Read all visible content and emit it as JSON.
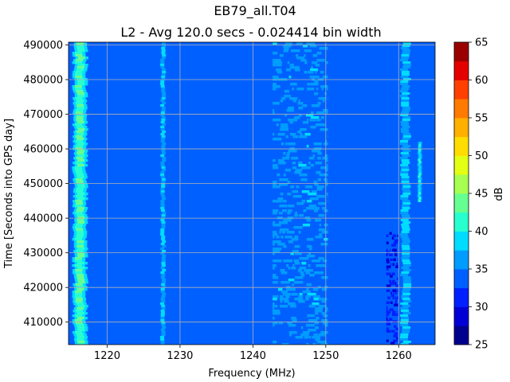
{
  "chart_data": {
    "type": "heatmap",
    "title": "EB79_all.T04",
    "subtitle": "L2 - Avg 120.0 secs - 0.024414 bin width",
    "xlabel": "Frequency (MHz)",
    "ylabel": "Time [Seconds into GPS day]",
    "xlim": [
      1214.7,
      1265.0
    ],
    "ylim": [
      403500,
      490800
    ],
    "xticks": [
      1220,
      1230,
      1240,
      1250,
      1260
    ],
    "xtick_labels": [
      "1220",
      "1230",
      "1240",
      "1250",
      "1260"
    ],
    "yticks": [
      410000,
      420000,
      430000,
      440000,
      450000,
      460000,
      470000,
      480000,
      490000
    ],
    "ytick_labels": [
      "410000",
      "420000",
      "430000",
      "440000",
      "450000",
      "460000",
      "470000",
      "480000",
      "490000"
    ],
    "grid": true,
    "background_level_db": 33.5,
    "colorbar": {
      "label": "dB",
      "min": 25,
      "max": 65,
      "step": 2.5,
      "ticks": [
        25,
        30,
        35,
        40,
        45,
        50,
        55,
        60,
        65
      ],
      "tick_labels": [
        "25",
        "30",
        "35",
        "40",
        "45",
        "50",
        "55",
        "60",
        "65"
      ],
      "colors": [
        "#00008f",
        "#0000d6",
        "#0020ff",
        "#0060ff",
        "#009cff",
        "#00dcff",
        "#28ffce",
        "#66ff91",
        "#a6ff51",
        "#e3ff13",
        "#ffdd00",
        "#ffb000",
        "#ff7a00",
        "#ff4000",
        "#e40000",
        "#9a0000"
      ]
    },
    "features": [
      {
        "kind": "vertical-band",
        "x_range": [
          1215.4,
          1217.2
        ],
        "y_range": [
          403500,
          490800
        ],
        "level_db": 42
      },
      {
        "kind": "vertical-band",
        "x_range": [
          1227.2,
          1228.2
        ],
        "y_range": [
          403500,
          490800
        ],
        "level_db": 37
      },
      {
        "kind": "vertical-band",
        "x_range": [
          1260.0,
          1262.0
        ],
        "y_range": [
          403500,
          490800
        ],
        "level_db": 36
      },
      {
        "kind": "vertical-band",
        "x_range": [
          1262.6,
          1263.2
        ],
        "y_range": [
          445000,
          462000
        ],
        "level_db": 39
      },
      {
        "kind": "diffuse-region",
        "x_range": [
          1242.7,
          1250.3
        ],
        "y_range": [
          403500,
          490800
        ],
        "level_db": 36
      },
      {
        "kind": "low-region",
        "x_range": [
          1258.3,
          1260.0
        ],
        "y_range": [
          403500,
          436000
        ],
        "level_db": 31
      }
    ]
  }
}
